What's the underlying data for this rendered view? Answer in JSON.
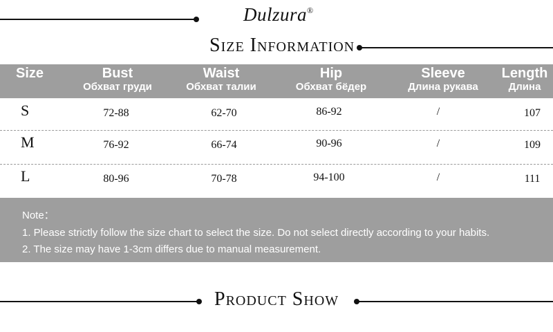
{
  "brand": {
    "name": "Dulzura",
    "mark": "®"
  },
  "section_size": {
    "title": "Size Information"
  },
  "table": {
    "headers": [
      {
        "en": "Size",
        "ru": ""
      },
      {
        "en": "Bust",
        "ru": "Обхват груди"
      },
      {
        "en": "Waist",
        "ru": "Обхват талии"
      },
      {
        "en": "Hip",
        "ru": "Обхват бёдер"
      },
      {
        "en": "Sleeve",
        "ru": "Длина рукава"
      },
      {
        "en": "Length",
        "ru": "Длина"
      }
    ],
    "rows": [
      {
        "size": "S",
        "bust": "72-88",
        "waist": "62-70",
        "hip": "86-92",
        "sleeve": "/",
        "length": "107"
      },
      {
        "size": "M",
        "bust": "76-92",
        "waist": "66-74",
        "hip": "90-96",
        "sleeve": "/",
        "length": "109"
      },
      {
        "size": "L",
        "bust": "80-96",
        "waist": "70-78",
        "hip": "94-100",
        "sleeve": "/",
        "length": "111"
      }
    ]
  },
  "notes": {
    "title": "Note：",
    "items": [
      "1. Please strictly follow the size chart to select the size. Do not select directly according to your habits.",
      "2. The size may have 1-3cm differs due to manual measurement."
    ]
  },
  "section_product": {
    "title": "Product Show"
  },
  "colors": {
    "header_bg": "#9e9e9e",
    "text": "#111111",
    "line": "#111111"
  }
}
